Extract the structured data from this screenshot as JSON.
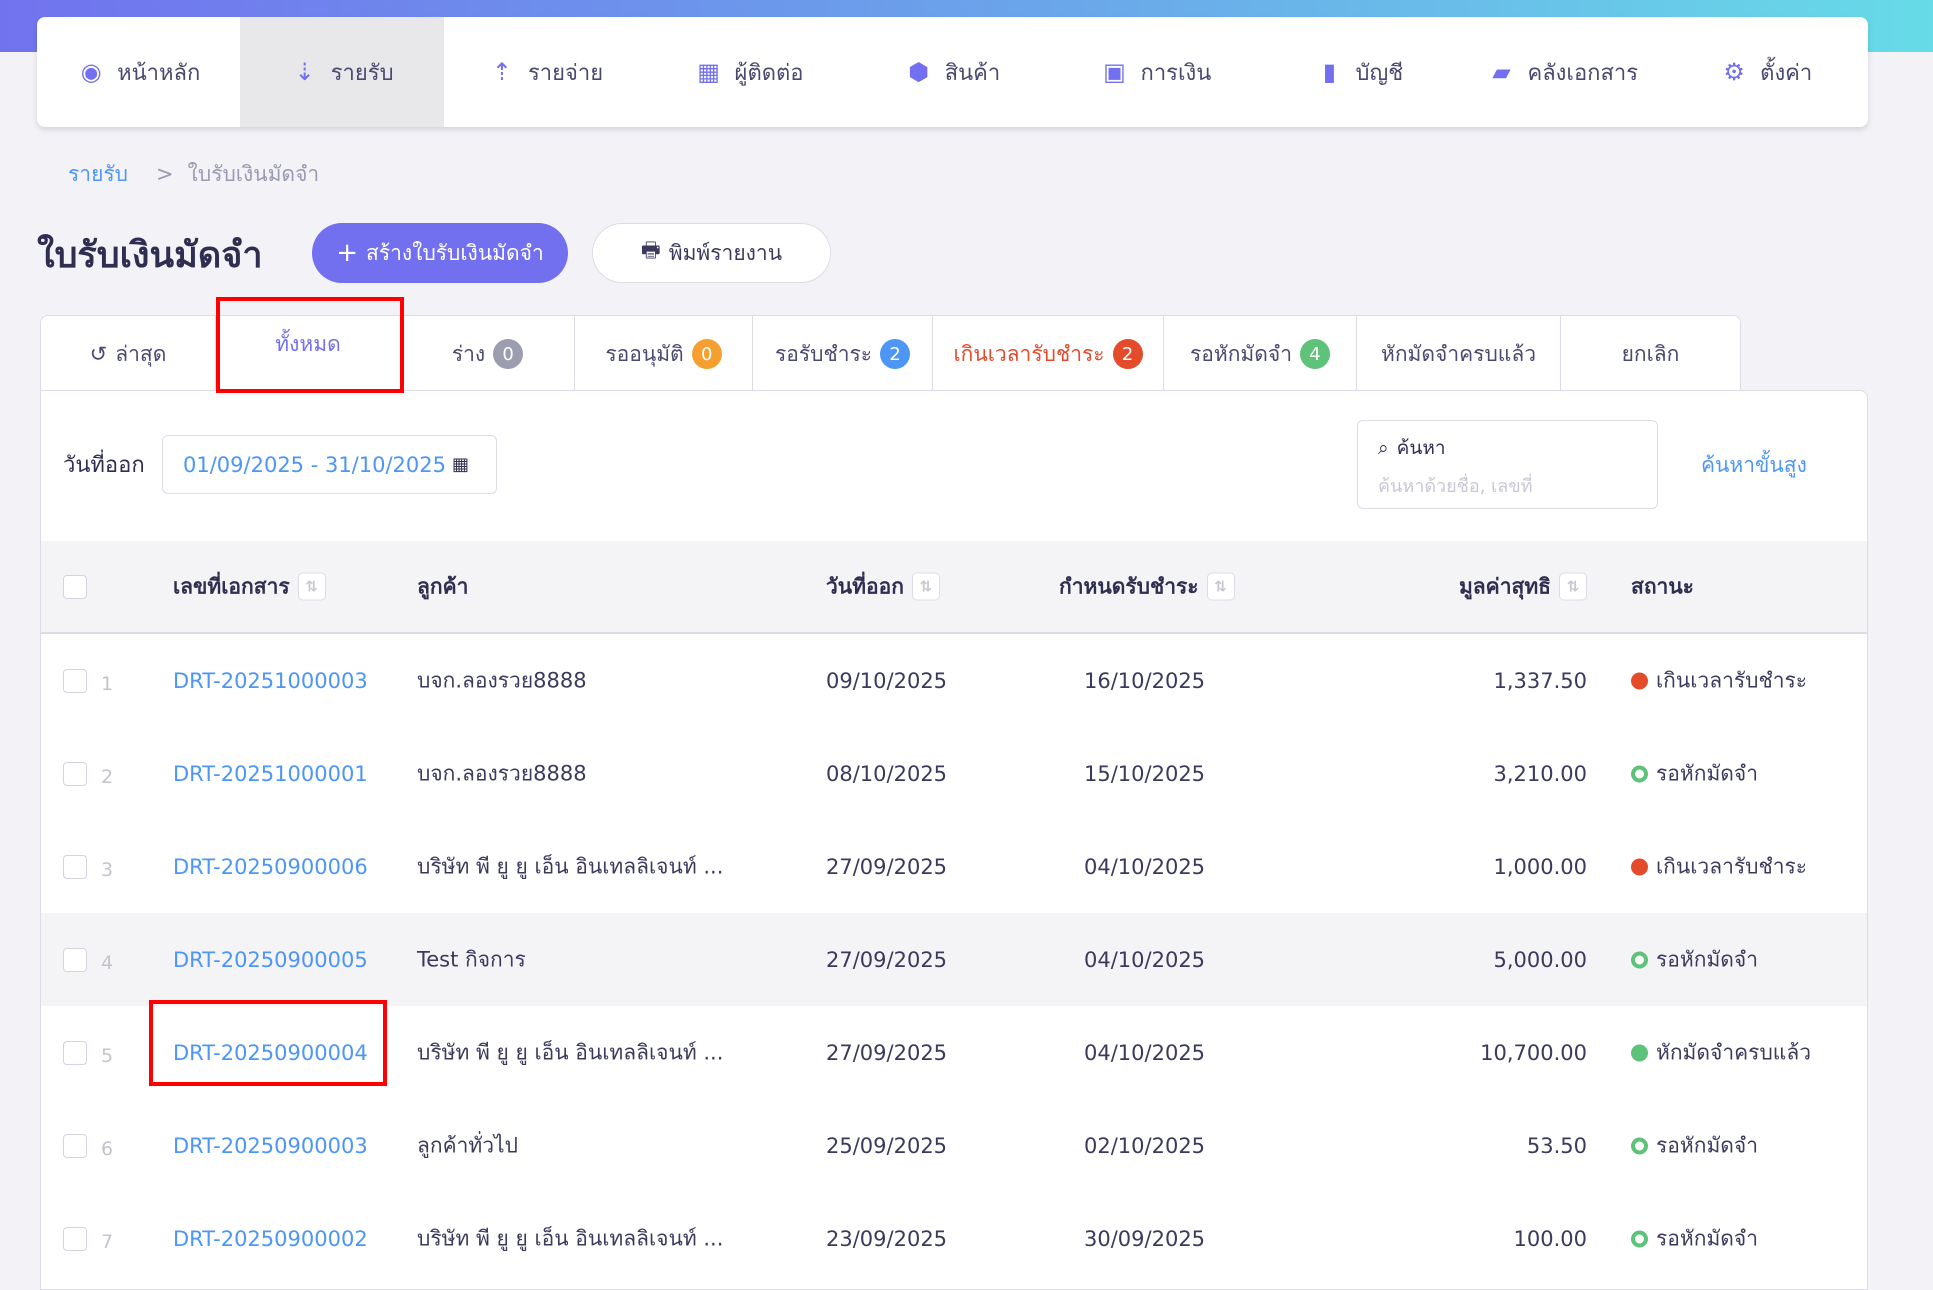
{
  "nav": [
    {
      "label": "หน้าหลัก",
      "icon": "dashboard-icon",
      "glyph": "◉"
    },
    {
      "label": "รายรับ",
      "icon": "income-icon",
      "glyph": "⇣",
      "active": true
    },
    {
      "label": "รายจ่าย",
      "icon": "expense-icon",
      "glyph": "⇡"
    },
    {
      "label": "ผู้ติดต่อ",
      "icon": "contacts-icon",
      "glyph": "▦"
    },
    {
      "label": "สินค้า",
      "icon": "product-box-icon",
      "glyph": "⬢"
    },
    {
      "label": "การเงิน",
      "icon": "money-icon",
      "glyph": "▣"
    },
    {
      "label": "บัญชี",
      "icon": "ledger-book-icon",
      "glyph": "▮"
    },
    {
      "label": "คลังเอกสาร",
      "icon": "folder-open-icon",
      "glyph": "▰"
    },
    {
      "label": "ตั้งค่า",
      "icon": "gear-icon",
      "glyph": "⚙"
    }
  ],
  "breadcrumb": {
    "parent": "รายรับ",
    "separator": ">",
    "current": "ใบรับเงินมัดจำ"
  },
  "page": {
    "title": "ใบรับเงินมัดจำ",
    "create_label": "สร้างใบรับเงินมัดจำ",
    "create_icon": "+",
    "print_label": "พิมพ์รายงาน"
  },
  "tabs": [
    {
      "label": "ล่าสุด",
      "icon": "history-icon"
    },
    {
      "label": "ทั้งหมด",
      "active": true
    },
    {
      "label": "ร่าง",
      "count": "0",
      "color": "#9d9db0"
    },
    {
      "label": "รออนุมัติ",
      "count": "0",
      "color": "#f59f31"
    },
    {
      "label": "รอรับชำระ",
      "count": "2",
      "color": "#4d96f5"
    },
    {
      "label": "เกินเวลารับชำระ",
      "count": "2",
      "color": "#e34b2b",
      "red": true
    },
    {
      "label": "รอหักมัดจำ",
      "count": "4",
      "color": "#5fc27a"
    },
    {
      "label": "หักมัดจำครบแล้ว"
    },
    {
      "label": "ยกเลิก"
    }
  ],
  "filters": {
    "date_label": "วันที่ออก",
    "date_value": "01/09/2025 - 31/10/2025",
    "search_label": "ค้นหา",
    "search_placeholder": "ค้นหาด้วยชื่อ, เลขที่",
    "advanced_label": "ค้นหาขั้นสูง"
  },
  "table": {
    "headers": {
      "doc": "เลขที่เอกสาร",
      "customer": "ลูกค้า",
      "issue_date": "วันที่ออก",
      "due_date": "กำหนดรับชำระ",
      "amount": "มูลค่าสุทธิ",
      "status": "สถานะ"
    },
    "rows": [
      {
        "n": "1",
        "doc": "DRT-20251000003",
        "customer": "บจก.ลองรวย8888",
        "issue": "09/10/2025",
        "due": "16/10/2025",
        "amount": "1,337.50",
        "status": "เกินเวลารับชำระ",
        "dot": "#e34b2b",
        "ring": false
      },
      {
        "n": "2",
        "doc": "DRT-20251000001",
        "customer": "บจก.ลองรวย8888",
        "issue": "08/10/2025",
        "due": "15/10/2025",
        "amount": "3,210.00",
        "status": "รอหักมัดจำ",
        "dot": "#5fc27a",
        "ring": true
      },
      {
        "n": "3",
        "doc": "DRT-20250900006",
        "customer": "บริษัท พี ยู ยู เอ็น อินเทลลิเจนท์ ...",
        "issue": "27/09/2025",
        "due": "04/10/2025",
        "amount": "1,000.00",
        "status": "เกินเวลารับชำระ",
        "dot": "#e34b2b",
        "ring": false
      },
      {
        "n": "4",
        "doc": "DRT-20250900005",
        "customer": "Test กิจการ",
        "issue": "27/09/2025",
        "due": "04/10/2025",
        "amount": "5,000.00",
        "status": "รอหักมัดจำ",
        "dot": "#5fc27a",
        "ring": true
      },
      {
        "n": "5",
        "doc": "DRT-20250900004",
        "customer": "บริษัท พี ยู ยู เอ็น อินเทลลิเจนท์ ...",
        "issue": "27/09/2025",
        "due": "04/10/2025",
        "amount": "10,700.00",
        "status": "หักมัดจำครบแล้ว",
        "dot": "#5fc27a",
        "ring": false
      },
      {
        "n": "6",
        "doc": "DRT-20250900003",
        "customer": "ลูกค้าทั่วไป",
        "issue": "25/09/2025",
        "due": "02/10/2025",
        "amount": "53.50",
        "status": "รอหักมัดจำ",
        "dot": "#5fc27a",
        "ring": true
      },
      {
        "n": "7",
        "doc": "DRT-20250900002",
        "customer": "บริษัท พี ยู ยู เอ็น อินเทลลิเจนท์ ...",
        "issue": "23/09/2025",
        "due": "30/09/2025",
        "amount": "100.00",
        "status": "รอหักมัดจำ",
        "dot": "#5fc27a",
        "ring": true
      }
    ]
  },
  "colors": {
    "accent": "#7370f0",
    "link": "#4d96f5",
    "highlight_box": "#ff0000"
  }
}
